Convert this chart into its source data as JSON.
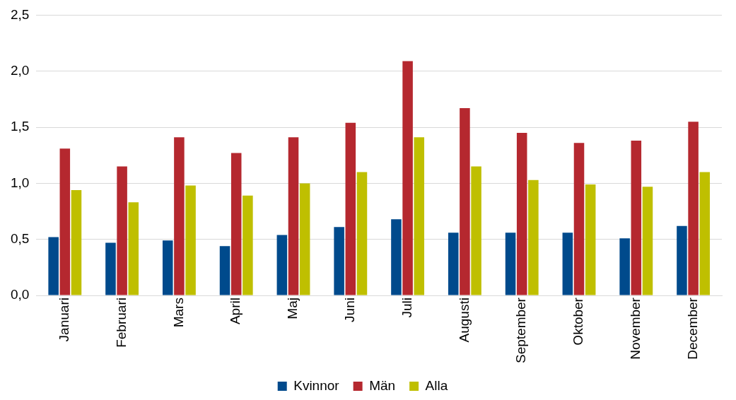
{
  "chart_data": {
    "type": "bar",
    "categories": [
      "Januari",
      "Februari",
      "Mars",
      "April",
      "Maj",
      "Juni",
      "Juli",
      "Augusti",
      "September",
      "Oktober",
      "November",
      "December"
    ],
    "series": [
      {
        "name": "Kvinnor",
        "color": "#004a8c",
        "values": [
          0.52,
          0.47,
          0.49,
          0.44,
          0.54,
          0.61,
          0.68,
          0.56,
          0.56,
          0.56,
          0.51,
          0.62
        ]
      },
      {
        "name": "Män",
        "color": "#b5282f",
        "values": [
          1.31,
          1.15,
          1.41,
          1.27,
          1.41,
          1.54,
          2.09,
          1.67,
          1.45,
          1.36,
          1.38,
          1.55
        ]
      },
      {
        "name": "Alla",
        "color": "#bfbf00",
        "values": [
          0.94,
          0.83,
          0.98,
          0.89,
          1.0,
          1.1,
          1.41,
          1.15,
          1.03,
          0.99,
          0.97,
          1.1
        ]
      }
    ],
    "ylim": [
      0,
      2.5
    ],
    "yticks": [
      {
        "value": 0,
        "label": "0,0"
      },
      {
        "value": 0.5,
        "label": "0,5"
      },
      {
        "value": 1,
        "label": "1,0"
      },
      {
        "value": 1.5,
        "label": "1,5"
      },
      {
        "value": 2,
        "label": "2,0"
      },
      {
        "value": 2.5,
        "label": "2,5"
      }
    ],
    "grid": "y",
    "legend": "bottom"
  }
}
